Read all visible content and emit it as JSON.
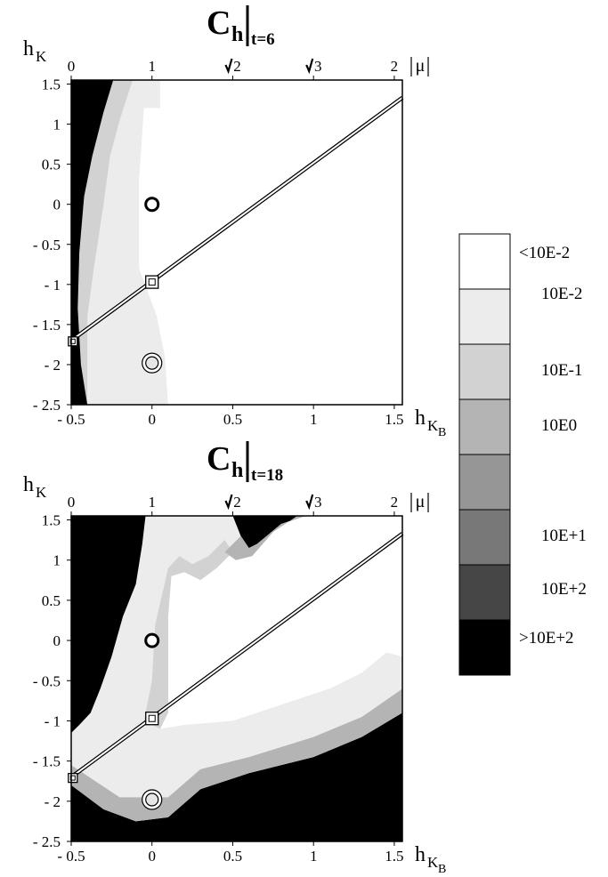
{
  "chart_data": [
    {
      "type": "heatmap",
      "title": {
        "main": "C",
        "sub": "h",
        "cond": "t=6"
      },
      "xlabel": {
        "main": "h",
        "sub": "K",
        "subsub": "B"
      },
      "ylabel": {
        "main": "h",
        "sub": "K"
      },
      "xlim": [
        -0.5,
        1.55
      ],
      "ylim": [
        -2.5,
        1.55
      ],
      "x_ticks": [
        "- 0.5",
        "0",
        "0.5",
        "1",
        "1.5"
      ],
      "x_tick_values": [
        -0.5,
        0,
        0.5,
        1,
        1.5
      ],
      "y_ticks": [
        "1.5",
        "1",
        "0.5",
        "0",
        "- 0.5",
        "- 1",
        "- 1.5",
        "- 2",
        "- 2.5"
      ],
      "y_tick_values": [
        1.5,
        1,
        0.5,
        0,
        -0.5,
        -1,
        -1.5,
        -2,
        -2.5
      ],
      "top_axis_label": "|μ|",
      "top_ticks": [
        {
          "label": "0",
          "x": -0.5,
          "sqrt": false
        },
        {
          "label": "1",
          "x": 0,
          "sqrt": false
        },
        {
          "label": "2",
          "x": 0.5,
          "sqrt": true
        },
        {
          "label": "3",
          "x": 1,
          "sqrt": true
        },
        {
          "label": "2",
          "x": 1.5,
          "sqrt": false
        }
      ],
      "line": {
        "x1": -0.5,
        "y1": -1.7,
        "x2": 1.55,
        "y2": 1.33
      },
      "square_markers": [
        {
          "x": 0,
          "y": -0.97
        },
        {
          "x": -0.49,
          "y": -1.71
        }
      ],
      "circle_markers": [
        {
          "x": 0,
          "y": 0,
          "style": "bold"
        },
        {
          "x": 0,
          "y": -1.98,
          "style": "double"
        }
      ],
      "regions": [
        {
          "level": 1,
          "points": [
            [
              -0.5,
              1.55
            ],
            [
              0.05,
              1.55
            ],
            [
              0.05,
              1.2
            ],
            [
              -0.05,
              1.2
            ],
            [
              -0.08,
              0.3
            ],
            [
              -0.08,
              -0.8
            ],
            [
              0.03,
              -1.4
            ],
            [
              0.08,
              -1.9
            ],
            [
              0.1,
              -2.5
            ],
            [
              -0.5,
              -2.5
            ]
          ]
        },
        {
          "level": 2,
          "points": [
            [
              -0.5,
              1.55
            ],
            [
              -0.12,
              1.55
            ],
            [
              -0.2,
              1.05
            ],
            [
              -0.26,
              0.6
            ],
            [
              -0.3,
              0.0
            ],
            [
              -0.36,
              -0.8
            ],
            [
              -0.4,
              -1.4
            ],
            [
              -0.4,
              -2.5
            ],
            [
              -0.5,
              -2.5
            ]
          ]
        },
        {
          "level": 7,
          "points": [
            [
              -0.5,
              1.55
            ],
            [
              -0.24,
              1.55
            ],
            [
              -0.3,
              1.15
            ],
            [
              -0.37,
              0.6
            ],
            [
              -0.42,
              0.1
            ],
            [
              -0.45,
              -0.6
            ],
            [
              -0.46,
              -1.3
            ],
            [
              -0.44,
              -2.0
            ],
            [
              -0.4,
              -2.5
            ],
            [
              -0.5,
              -2.5
            ]
          ]
        }
      ]
    },
    {
      "type": "heatmap",
      "title": {
        "main": "C",
        "sub": "h",
        "cond": "t=18"
      },
      "xlabel": {
        "main": "h",
        "sub": "K",
        "subsub": "B"
      },
      "ylabel": {
        "main": "h",
        "sub": "K"
      },
      "xlim": [
        -0.5,
        1.55
      ],
      "ylim": [
        -2.5,
        1.55
      ],
      "x_ticks": [
        "- 0.5",
        "0",
        "0.5",
        "1",
        "1.5"
      ],
      "x_tick_values": [
        -0.5,
        0,
        0.5,
        1,
        1.5
      ],
      "y_ticks": [
        "1.5",
        "1",
        "0.5",
        "0",
        "- 0.5",
        "- 1",
        "- 1.5",
        "- 2",
        "- 2.5"
      ],
      "y_tick_values": [
        1.5,
        1,
        0.5,
        0,
        -0.5,
        -1,
        -1.5,
        -2,
        -2.5
      ],
      "top_axis_label": "|μ|",
      "top_ticks": [
        {
          "label": "0",
          "x": -0.5,
          "sqrt": false
        },
        {
          "label": "1",
          "x": 0,
          "sqrt": false
        },
        {
          "label": "2",
          "x": 0.5,
          "sqrt": true
        },
        {
          "label": "3",
          "x": 1,
          "sqrt": true
        },
        {
          "label": "2",
          "x": 1.5,
          "sqrt": false
        }
      ],
      "line": {
        "x1": -0.5,
        "y1": -1.7,
        "x2": 1.55,
        "y2": 1.33
      },
      "square_markers": [
        {
          "x": 0,
          "y": -0.97
        },
        {
          "x": -0.49,
          "y": -1.71
        }
      ],
      "circle_markers": [
        {
          "x": 0,
          "y": 0,
          "style": "bold"
        },
        {
          "x": 0,
          "y": -1.98,
          "style": "double"
        }
      ],
      "regions": [
        {
          "level": 7,
          "points": [
            [
              -0.5,
              -2.5
            ],
            [
              1.55,
              -2.5
            ],
            [
              1.55,
              -0.9
            ],
            [
              1.3,
              -1.2
            ],
            [
              1.0,
              -1.45
            ],
            [
              0.6,
              -1.65
            ],
            [
              0.3,
              -1.85
            ],
            [
              0.1,
              -2.2
            ],
            [
              -0.1,
              -2.25
            ],
            [
              -0.3,
              -2.1
            ],
            [
              -0.5,
              -1.8
            ]
          ]
        },
        {
          "level": 3,
          "points": [
            [
              -0.5,
              -1.8
            ],
            [
              -0.3,
              -2.1
            ],
            [
              -0.1,
              -2.25
            ],
            [
              0.1,
              -2.2
            ],
            [
              0.3,
              -1.85
            ],
            [
              0.6,
              -1.65
            ],
            [
              1.0,
              -1.45
            ],
            [
              1.3,
              -1.2
            ],
            [
              1.55,
              -0.9
            ],
            [
              1.55,
              -0.6
            ],
            [
              1.3,
              -0.95
            ],
            [
              1.0,
              -1.2
            ],
            [
              0.6,
              -1.45
            ],
            [
              0.3,
              -1.6
            ],
            [
              0.1,
              -1.95
            ],
            [
              -0.2,
              -1.95
            ],
            [
              -0.5,
              -1.55
            ]
          ]
        },
        {
          "level": 1,
          "points": [
            [
              -0.5,
              -1.55
            ],
            [
              -0.2,
              -1.95
            ],
            [
              0.1,
              -1.95
            ],
            [
              0.3,
              -1.6
            ],
            [
              0.6,
              -1.45
            ],
            [
              1.0,
              -1.2
            ],
            [
              1.3,
              -0.95
            ],
            [
              1.55,
              -0.6
            ],
            [
              1.55,
              -0.2
            ],
            [
              1.45,
              -0.15
            ],
            [
              1.3,
              -0.4
            ],
            [
              1.1,
              -0.6
            ],
            [
              0.8,
              -0.8
            ],
            [
              0.5,
              -1.0
            ],
            [
              0.2,
              -1.05
            ],
            [
              0.05,
              -1.1
            ],
            [
              -0.1,
              -1.35
            ],
            [
              -0.3,
              -1.4
            ],
            [
              -0.5,
              -1.15
            ]
          ]
        },
        {
          "level": 1,
          "points": [
            [
              -0.5,
              -1.15
            ],
            [
              -0.3,
              -1.4
            ],
            [
              -0.1,
              -1.35
            ],
            [
              0.05,
              -1.1
            ],
            [
              0.1,
              -0.9
            ],
            [
              0.1,
              0.3
            ],
            [
              0.12,
              0.8
            ],
            [
              0.17,
              1.0
            ],
            [
              0.25,
              0.8
            ],
            [
              0.35,
              0.9
            ],
            [
              0.45,
              1.1
            ],
            [
              0.55,
              1.3
            ],
            [
              0.5,
              1.55
            ],
            [
              -0.04,
              1.55
            ],
            [
              -0.06,
              1.2
            ],
            [
              -0.1,
              0.7
            ],
            [
              -0.18,
              0.3
            ],
            [
              -0.25,
              -0.2
            ],
            [
              -0.32,
              -0.6
            ],
            [
              -0.38,
              -0.9
            ],
            [
              -0.45,
              -1.05
            ]
          ]
        },
        {
          "level": 2,
          "points": [
            [
              0.05,
              -1.1
            ],
            [
              0.1,
              -0.9
            ],
            [
              0.1,
              0.3
            ],
            [
              0.12,
              0.8
            ],
            [
              0.2,
              0.85
            ],
            [
              0.3,
              0.75
            ],
            [
              0.4,
              0.9
            ],
            [
              0.5,
              1.1
            ],
            [
              0.45,
              1.25
            ],
            [
              0.35,
              1.05
            ],
            [
              0.25,
              0.95
            ],
            [
              0.17,
              1.05
            ],
            [
              0.1,
              0.9
            ],
            [
              0.02,
              0.2
            ],
            [
              0.0,
              -0.5
            ],
            [
              -0.05,
              -1.0
            ]
          ]
        },
        {
          "level": 7,
          "points": [
            [
              -0.5,
              1.55
            ],
            [
              -0.04,
              1.55
            ],
            [
              -0.06,
              1.2
            ],
            [
              -0.1,
              0.7
            ],
            [
              -0.18,
              0.3
            ],
            [
              -0.25,
              -0.2
            ],
            [
              -0.32,
              -0.6
            ],
            [
              -0.38,
              -0.9
            ],
            [
              -0.45,
              -1.05
            ],
            [
              -0.5,
              -1.15
            ]
          ]
        },
        {
          "level": 7,
          "points": [
            [
              0.55,
              1.3
            ],
            [
              0.5,
              1.55
            ],
            [
              0.95,
              1.55
            ],
            [
              0.8,
              1.45
            ],
            [
              0.65,
              1.2
            ],
            [
              0.6,
              1.15
            ]
          ]
        },
        {
          "level": 3,
          "points": [
            [
              0.45,
              1.1
            ],
            [
              0.55,
              1.3
            ],
            [
              0.6,
              1.15
            ],
            [
              0.65,
              1.2
            ],
            [
              0.8,
              1.45
            ],
            [
              0.95,
              1.55
            ],
            [
              0.9,
              1.55
            ],
            [
              0.75,
              1.35
            ],
            [
              0.62,
              1.05
            ],
            [
              0.52,
              1.0
            ]
          ]
        }
      ]
    }
  ],
  "colorbar": {
    "colors": [
      "#ffffff",
      "#ececec",
      "#d2d2d2",
      "#b4b4b4",
      "#969696",
      "#787878",
      "#464646",
      "#000000"
    ],
    "labels": [
      "<10E-2",
      "10E-2",
      "10E-1",
      "10E0",
      "10E+1",
      "10E+2",
      ">10E+2"
    ]
  }
}
